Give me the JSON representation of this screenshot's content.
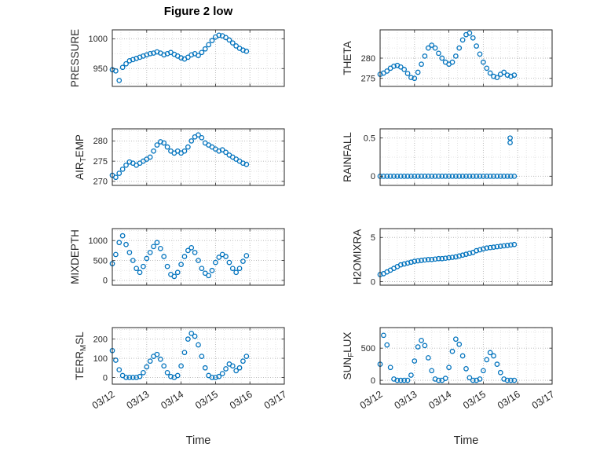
{
  "title": "Figure 2 low",
  "xlabel": "Time",
  "marker_color": "#0072BD",
  "chart_common": {
    "x_days": [
      0,
      0.1,
      0.2,
      0.3,
      0.4,
      0.5,
      0.6,
      0.7,
      0.8,
      0.9,
      1,
      1.1,
      1.2,
      1.3,
      1.4,
      1.5,
      1.6,
      1.7,
      1.8,
      1.9,
      2,
      2.1,
      2.2,
      2.3,
      2.4,
      2.5,
      2.6,
      2.7,
      2.8,
      2.9,
      3,
      3.1,
      3.2,
      3.3,
      3.4,
      3.5,
      3.6,
      3.7,
      3.8,
      3.9
    ],
    "xlim": [
      0,
      5
    ],
    "xticks": [
      0,
      1,
      2,
      3,
      4,
      5
    ],
    "xticklabels": [
      "03/12",
      "03/13",
      "03/14",
      "03/15",
      "03/16",
      "03/17"
    ],
    "grid": true,
    "legend": "none"
  },
  "chart_data": [
    {
      "type": "scatter",
      "name": "PRESSURE",
      "ylabel": {
        "pre": "PRESSURE",
        "sub": "",
        "post": ""
      },
      "y": [
        948,
        946,
        930,
        952,
        958,
        963,
        965,
        967,
        969,
        971,
        973,
        975,
        976,
        978,
        976,
        973,
        975,
        977,
        974,
        971,
        968,
        966,
        969,
        973,
        975,
        972,
        977,
        983,
        990,
        997,
        1003,
        1006,
        1005,
        1002,
        998,
        993,
        988,
        984,
        981,
        979
      ],
      "yticks": [
        950,
        1000
      ],
      "ylim": [
        920,
        1015
      ],
      "show_x_labels": false
    },
    {
      "type": "scatter",
      "name": "THETA",
      "ylabel": {
        "pre": "THETA",
        "sub": "",
        "post": ""
      },
      "y": [
        276,
        276.3,
        276.8,
        277.5,
        278,
        278.2,
        277.8,
        277.2,
        276.2,
        275.2,
        275,
        276.5,
        278.5,
        280.5,
        282.5,
        283.2,
        282.5,
        281.2,
        280,
        279,
        278.5,
        279,
        280.5,
        282.5,
        284.5,
        285.8,
        286.2,
        285,
        283,
        281,
        279,
        277.5,
        276.3,
        275.5,
        275.2,
        276,
        276.5,
        275.8,
        275.5,
        275.8
      ],
      "yticks": [
        275,
        280
      ],
      "ylim": [
        273,
        287
      ],
      "show_x_labels": false
    },
    {
      "type": "scatter",
      "name": "AIR_TEMP",
      "ylabel": {
        "pre": "AIR",
        "sub": "T",
        "post": "EMP"
      },
      "y": [
        271.5,
        271,
        272,
        273,
        274,
        274.8,
        274.5,
        274,
        274.5,
        275,
        275.5,
        276,
        277.5,
        279,
        279.8,
        279.5,
        278.5,
        277.5,
        277,
        277.5,
        277,
        277.5,
        278.5,
        280,
        281,
        281.5,
        280.8,
        279.5,
        279,
        278.5,
        278,
        277.5,
        277.8,
        277.2,
        276.5,
        276,
        275.5,
        275,
        274.5,
        274.2
      ],
      "yticks": [
        270,
        275,
        280
      ],
      "ylim": [
        269,
        283
      ],
      "show_x_labels": false
    },
    {
      "type": "scatter",
      "name": "RAINFALL",
      "ylabel": {
        "pre": "RAINFALL",
        "sub": "",
        "post": ""
      },
      "x": [
        0,
        0.1,
        0.2,
        0.3,
        0.4,
        0.5,
        0.6,
        0.7,
        0.8,
        0.9,
        1,
        1.1,
        1.2,
        1.3,
        1.4,
        1.5,
        1.6,
        1.7,
        1.8,
        1.9,
        2,
        2.1,
        2.2,
        2.3,
        2.4,
        2.5,
        2.6,
        2.7,
        2.8,
        2.9,
        3,
        3.1,
        3.2,
        3.3,
        3.4,
        3.5,
        3.6,
        3.7,
        3.8,
        3.9,
        3.78,
        3.78
      ],
      "y": [
        0,
        0,
        0,
        0,
        0,
        0,
        0,
        0,
        0,
        0,
        0,
        0,
        0,
        0,
        0,
        0,
        0,
        0,
        0,
        0,
        0,
        0,
        0,
        0,
        0,
        0,
        0,
        0,
        0,
        0,
        0,
        0,
        0,
        0,
        0,
        0,
        0,
        0,
        0,
        0,
        0.5,
        0.44
      ],
      "yticks": [
        0,
        0.5
      ],
      "ylim": [
        -0.12,
        0.62
      ],
      "show_x_labels": false
    },
    {
      "type": "scatter",
      "name": "MIXDEPTH",
      "ylabel": {
        "pre": "MIXDEPTH",
        "sub": "",
        "post": ""
      },
      "y": [
        420,
        650,
        950,
        1120,
        900,
        700,
        500,
        300,
        200,
        350,
        550,
        700,
        850,
        950,
        800,
        600,
        350,
        150,
        100,
        200,
        400,
        600,
        750,
        820,
        700,
        500,
        300,
        180,
        120,
        250,
        450,
        580,
        650,
        600,
        450,
        300,
        200,
        300,
        480,
        620
      ],
      "yticks": [
        0,
        500,
        1000
      ],
      "ylim": [
        -120,
        1300
      ],
      "show_x_labels": false
    },
    {
      "type": "scatter",
      "name": "H2OMIXRA",
      "ylabel": {
        "pre": "H2OMIXRA",
        "sub": "",
        "post": ""
      },
      "y": [
        0.8,
        0.9,
        1.1,
        1.3,
        1.5,
        1.7,
        1.9,
        2,
        2.1,
        2.2,
        2.3,
        2.35,
        2.4,
        2.45,
        2.5,
        2.5,
        2.55,
        2.6,
        2.6,
        2.65,
        2.7,
        2.75,
        2.8,
        2.9,
        3,
        3.1,
        3.2,
        3.3,
        3.5,
        3.6,
        3.7,
        3.8,
        3.85,
        3.9,
        3.95,
        4,
        4.05,
        4.1,
        4.15,
        4.2
      ],
      "yticks": [
        0,
        5
      ],
      "ylim": [
        -0.4,
        6
      ],
      "show_x_labels": false
    },
    {
      "type": "scatter",
      "name": "TERR_MSL",
      "ylabel": {
        "pre": "TERR",
        "sub": "M",
        "post": "SL"
      },
      "y": [
        140,
        90,
        40,
        10,
        0,
        0,
        0,
        0,
        5,
        25,
        55,
        85,
        110,
        120,
        95,
        60,
        25,
        5,
        0,
        10,
        60,
        130,
        200,
        230,
        215,
        170,
        110,
        50,
        10,
        0,
        0,
        5,
        20,
        45,
        70,
        60,
        35,
        50,
        85,
        110
      ],
      "yticks": [
        0,
        100,
        200
      ],
      "ylim": [
        -35,
        260
      ],
      "show_x_labels": true
    },
    {
      "type": "scatter",
      "name": "SUN_FLUX",
      "ylabel": {
        "pre": "SUN",
        "sub": "F",
        "post": "LUX"
      },
      "y": [
        250,
        700,
        550,
        200,
        20,
        0,
        0,
        0,
        0,
        80,
        300,
        520,
        620,
        540,
        350,
        150,
        20,
        0,
        0,
        30,
        200,
        450,
        640,
        560,
        380,
        180,
        40,
        0,
        0,
        20,
        150,
        320,
        430,
        380,
        250,
        120,
        20,
        0,
        0,
        0
      ],
      "yticks": [
        0,
        500
      ],
      "ylim": [
        -60,
        820
      ],
      "show_x_labels": true
    }
  ]
}
